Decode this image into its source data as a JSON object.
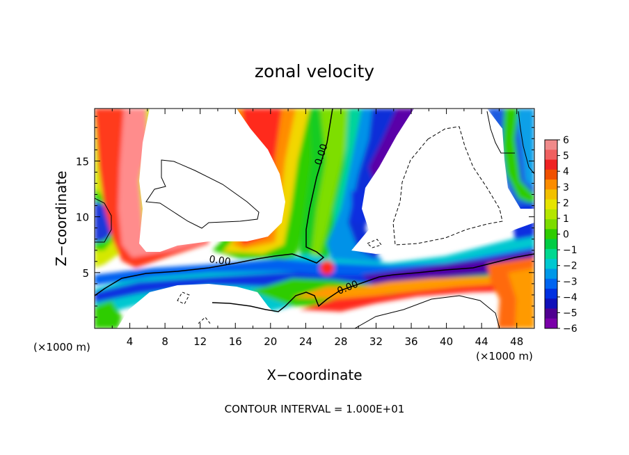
{
  "chart_data": {
    "type": "heatmap",
    "title": "zonal velocity",
    "xlabel": "X−coordinate",
    "ylabel": "Z−coordinate",
    "x_unit_label": "(×1000 m)",
    "y_unit_label": "(×1000 m)",
    "footer": "CONTOUR INTERVAL = 1.000E+01",
    "xlim": [
      0,
      50
    ],
    "ylim": [
      0,
      19.7
    ],
    "x_ticks": [
      4,
      8,
      12,
      16,
      20,
      24,
      28,
      32,
      36,
      40,
      44,
      48
    ],
    "x_tick_labels": [
      "4",
      "8",
      "12",
      "16",
      "20",
      "24",
      "28",
      "32",
      "36",
      "40",
      "44",
      "48"
    ],
    "y_ticks": [
      5,
      10,
      15
    ],
    "y_tick_labels": [
      "5",
      "10",
      "15"
    ],
    "colorbar": {
      "range": [
        -6,
        6
      ],
      "tick_values": [
        6,
        5,
        4,
        3,
        2,
        1,
        0,
        -1,
        -2,
        -3,
        -4,
        -5,
        -6
      ],
      "tick_labels": [
        "6",
        "5",
        "4",
        "3",
        "2",
        "1",
        "0",
        "−1",
        "−2",
        "−3",
        "−4",
        "−5",
        "−6"
      ],
      "colors": [
        "#f08a8a",
        "#f06060",
        "#ef2222",
        "#f05000",
        "#fb8c00",
        "#f2c000",
        "#e6e400",
        "#b4e600",
        "#7cdc00",
        "#2ecc00",
        "#00cc44",
        "#00d890",
        "#00c8d0",
        "#0098e8",
        "#0064f0",
        "#0030e0",
        "#1010b8",
        "#500090",
        "#7a00a8"
      ]
    },
    "contour_labels": [
      {
        "text": "0.00",
        "x": 14.2,
        "y": 5.8
      },
      {
        "text": "0.00",
        "x": 26.1,
        "y": 15.5
      },
      {
        "text": "0.00",
        "x": 28.9,
        "y": 3.4
      }
    ]
  }
}
